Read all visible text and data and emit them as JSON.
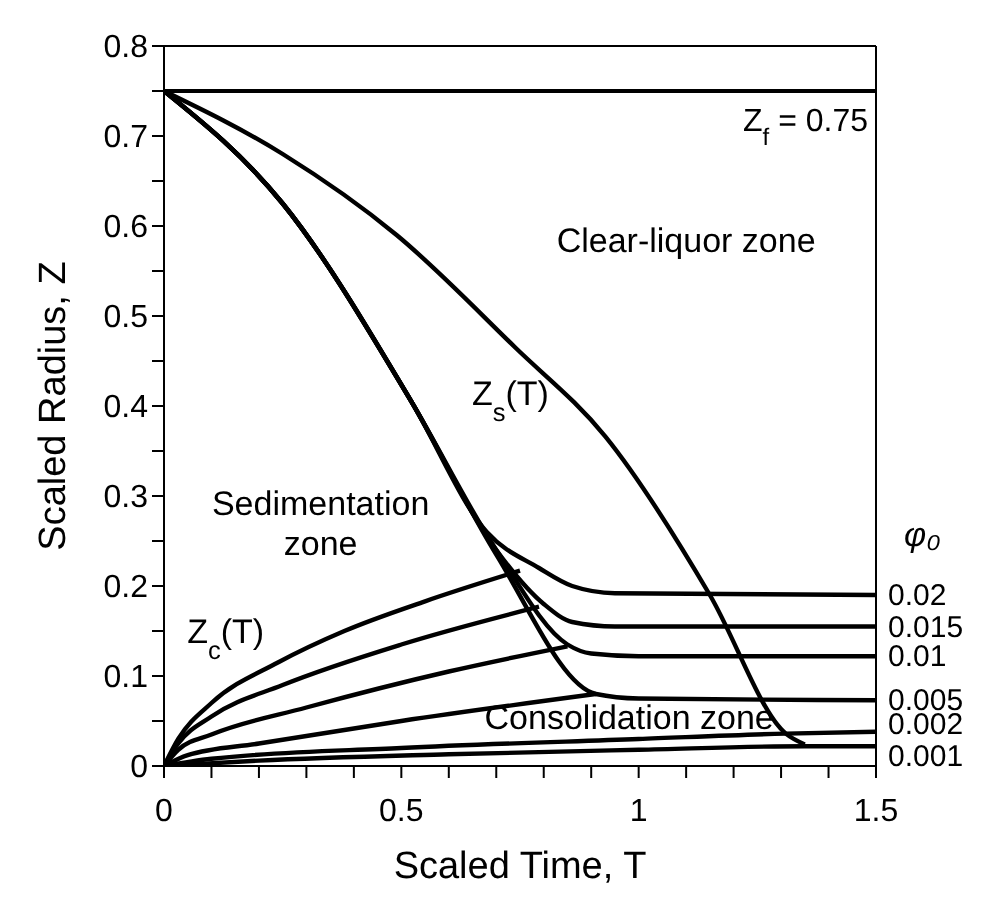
{
  "chart_data": {
    "type": "line",
    "xlabel": "Scaled Time, T",
    "ylabel": "Scaled Radius, Z",
    "legend_title": "φ₀",
    "xlim": [
      0,
      1.5
    ],
    "ylim": [
      0,
      0.8
    ],
    "xticks": [
      0,
      {
        "value": 0.1,
        "label": null
      },
      {
        "value": 0.2,
        "label": null
      },
      {
        "value": 0.3,
        "label": null
      },
      {
        "value": 0.4,
        "label": null
      },
      0.5,
      {
        "value": 0.6,
        "label": null
      },
      {
        "value": 0.7,
        "label": null
      },
      {
        "value": 0.8,
        "label": null
      },
      {
        "value": 0.9,
        "label": null
      },
      1,
      {
        "value": 1.1,
        "label": null
      },
      {
        "value": 1.2,
        "label": null
      },
      {
        "value": 1.3,
        "label": null
      },
      {
        "value": 1.4,
        "label": null
      },
      1.5
    ],
    "yticks": [
      0,
      {
        "value": 0.05,
        "label": null
      },
      0.1,
      {
        "value": 0.15,
        "label": null
      },
      0.2,
      {
        "value": 0.25,
        "label": null
      },
      0.3,
      {
        "value": 0.35,
        "label": null
      },
      0.4,
      {
        "value": 0.45,
        "label": null
      },
      0.5,
      {
        "value": 0.55,
        "label": null
      },
      0.6,
      {
        "value": 0.65,
        "label": null
      },
      0.7,
      {
        "value": 0.75,
        "label": null
      },
      0.8
    ],
    "marker": "none",
    "line_style": "solid",
    "ref_lines": [
      {
        "axis": "y",
        "value": 0.75,
        "label": "Z$_{f}$ = 0.75",
        "color": "#000000"
      }
    ],
    "annotations": [
      "Clear-liquor zone",
      "Z$_{s}$(T)",
      "Sedimentation zone",
      "Z$_{c}$(T)",
      "Consolidation zone"
    ],
    "series": [
      {
        "color": "#000000",
        "x": [
          0,
          0.25,
          0.49,
          0.74,
          0.93,
          1.15,
          1.31,
          1.35
        ],
        "values": [
          0.75,
          0.68,
          0.59,
          0.465,
          0.366,
          0.19,
          0.036,
          0.024
        ]
      },
      {
        "name": "0.02",
        "color": "#000000",
        "x": [
          0,
          0.25,
          0.52,
          0.68,
          0.79,
          0.86,
          0.95,
          1.5
        ],
        "values": [
          0.75,
          0.625,
          0.406,
          0.26,
          0.22,
          0.2,
          0.192,
          0.19
        ]
      },
      {
        "name": "0.015",
        "color": "#000000",
        "x": [
          0,
          0.25,
          0.52,
          0.7,
          0.8,
          0.86,
          0.95,
          1.5
        ],
        "values": [
          0.75,
          0.625,
          0.406,
          0.24,
          0.18,
          0.16,
          0.155,
          0.155
        ]
      },
      {
        "name": "0.01",
        "color": "#000000",
        "x": [
          0,
          0.25,
          0.52,
          0.7,
          0.85,
          0.9,
          1.0,
          1.5
        ],
        "values": [
          0.75,
          0.625,
          0.406,
          0.24,
          0.135,
          0.125,
          0.122,
          0.122
        ]
      },
      {
        "name": "0.005",
        "color": "#000000",
        "x": [
          0,
          0.25,
          0.52,
          0.7,
          0.91,
          1.0,
          1.5
        ],
        "values": [
          0.75,
          0.625,
          0.406,
          0.235,
          0.08,
          0.075,
          0.073
        ]
      },
      {
        "color": "#000000",
        "x": [
          0,
          0.03,
          0.1,
          0.24,
          0.38,
          0.55,
          0.75
        ],
        "values": [
          0,
          0.03,
          0.07,
          0.115,
          0.15,
          0.183,
          0.217
        ]
      },
      {
        "color": "#000000",
        "x": [
          0,
          0.03,
          0.1,
          0.25,
          0.5,
          0.79
        ],
        "values": [
          0,
          0.025,
          0.055,
          0.09,
          0.135,
          0.177
        ]
      },
      {
        "color": "#000000",
        "x": [
          0,
          0.03,
          0.1,
          0.3,
          0.6,
          0.85
        ],
        "values": [
          0,
          0.018,
          0.035,
          0.065,
          0.105,
          0.133
        ]
      },
      {
        "color": "#000000",
        "x": [
          0,
          0.05,
          0.2,
          0.5,
          0.91
        ],
        "values": [
          0,
          0.012,
          0.025,
          0.05,
          0.08
        ]
      },
      {
        "name": "0.002",
        "color": "#000000",
        "x": [
          0,
          0.1,
          0.5,
          1.0,
          1.31,
          1.5
        ],
        "values": [
          0,
          0.008,
          0.02,
          0.03,
          0.036,
          0.038
        ]
      },
      {
        "name": "0.001",
        "color": "#000000",
        "x": [
          0,
          0.2,
          0.6,
          1.0,
          1.35,
          1.5
        ],
        "values": [
          0,
          0.006,
          0.013,
          0.018,
          0.022,
          0.022
        ]
      }
    ]
  }
}
